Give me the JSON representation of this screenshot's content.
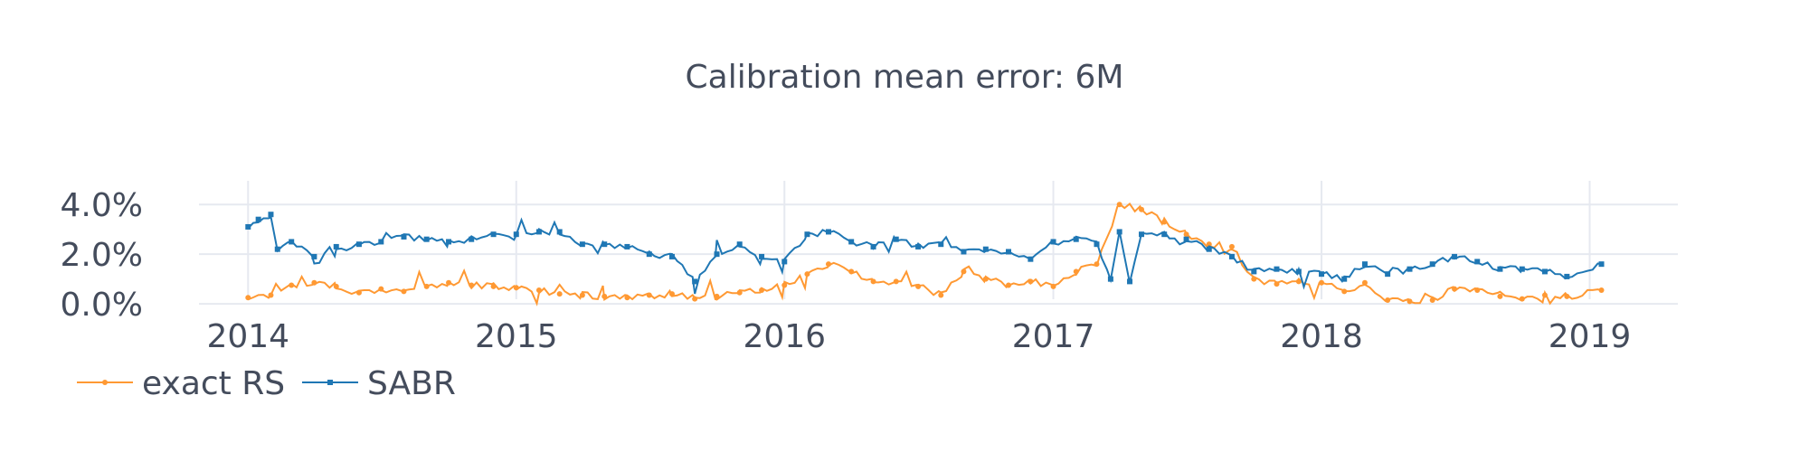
{
  "chart_data": {
    "type": "line",
    "title": "Calibration mean error: 6M",
    "xlabel": "",
    "ylabel": "",
    "x_start": "2014-01-01",
    "x_end": "2019-01-17",
    "xlim": [
      "2013-08-01",
      "2019-05-01"
    ],
    "ylim": [
      -0.25,
      5.5
    ],
    "x_ticks": [
      "2014",
      "2015",
      "2016",
      "2017",
      "2018",
      "2019"
    ],
    "y_ticks": [
      "0.0%",
      "2.0%",
      "4.0%"
    ],
    "grid": true,
    "legend_position": "bottom-left",
    "series": [
      {
        "name": "exact RS",
        "color": "#ff9933",
        "knots": [
          [
            "2014-01-01",
            0.25
          ],
          [
            "2014-02-01",
            0.35
          ],
          [
            "2014-03-01",
            0.75
          ],
          [
            "2014-04-01",
            0.85
          ],
          [
            "2014-05-01",
            0.7
          ],
          [
            "2014-06-01",
            0.45
          ],
          [
            "2014-07-01",
            0.6
          ],
          [
            "2014-08-01",
            0.5
          ],
          [
            "2014-09-01",
            0.7
          ],
          [
            "2014-10-01",
            0.85
          ],
          [
            "2014-11-01",
            0.75
          ],
          [
            "2014-12-01",
            0.7
          ],
          [
            "2015-01-01",
            0.65
          ],
          [
            "2015-02-01",
            0.55
          ],
          [
            "2015-03-01",
            0.4
          ],
          [
            "2015-04-01",
            0.35
          ],
          [
            "2015-05-01",
            0.3
          ],
          [
            "2015-06-01",
            0.25
          ],
          [
            "2015-07-01",
            0.35
          ],
          [
            "2015-08-01",
            0.4
          ],
          [
            "2015-09-01",
            0.2
          ],
          [
            "2015-10-01",
            0.3
          ],
          [
            "2015-11-01",
            0.45
          ],
          [
            "2015-12-01",
            0.55
          ],
          [
            "2016-01-01",
            0.75
          ],
          [
            "2016-02-01",
            1.2
          ],
          [
            "2016-03-01",
            1.6
          ],
          [
            "2016-04-01",
            1.3
          ],
          [
            "2016-05-01",
            0.9
          ],
          [
            "2016-06-01",
            0.9
          ],
          [
            "2016-07-01",
            0.7
          ],
          [
            "2016-08-01",
            0.35
          ],
          [
            "2016-09-01",
            1.3
          ],
          [
            "2016-10-01",
            1.0
          ],
          [
            "2016-11-01",
            0.75
          ],
          [
            "2016-12-01",
            0.9
          ],
          [
            "2017-01-01",
            0.7
          ],
          [
            "2017-02-01",
            1.3
          ],
          [
            "2017-03-01",
            1.6
          ],
          [
            "2017-04-01",
            4.0
          ],
          [
            "2017-05-01",
            3.8
          ],
          [
            "2017-06-01",
            3.3
          ],
          [
            "2017-07-01",
            2.8
          ],
          [
            "2017-08-01",
            2.4
          ],
          [
            "2017-09-01",
            2.3
          ],
          [
            "2017-10-01",
            1.0
          ],
          [
            "2017-11-01",
            0.8
          ],
          [
            "2017-12-01",
            0.9
          ],
          [
            "2018-01-01",
            0.85
          ],
          [
            "2018-02-01",
            0.5
          ],
          [
            "2018-03-01",
            0.85
          ],
          [
            "2018-04-01",
            0.15
          ],
          [
            "2018-05-01",
            0.1
          ],
          [
            "2018-06-01",
            0.15
          ],
          [
            "2018-07-01",
            0.6
          ],
          [
            "2018-08-01",
            0.55
          ],
          [
            "2018-09-01",
            0.3
          ],
          [
            "2018-10-01",
            0.2
          ],
          [
            "2018-11-01",
            0.35
          ],
          [
            "2018-12-01",
            0.3
          ],
          [
            "2019-01-17",
            0.55
          ]
        ]
      },
      {
        "name": "SABR",
        "color": "#1f77b4",
        "knots": [
          [
            "2014-01-01",
            3.1
          ],
          [
            "2014-01-15",
            3.4
          ],
          [
            "2014-02-01",
            3.6
          ],
          [
            "2014-02-10",
            2.2
          ],
          [
            "2014-03-01",
            2.5
          ],
          [
            "2014-04-01",
            1.9
          ],
          [
            "2014-05-01",
            2.3
          ],
          [
            "2014-06-01",
            2.4
          ],
          [
            "2014-07-01",
            2.5
          ],
          [
            "2014-08-01",
            2.7
          ],
          [
            "2014-09-01",
            2.6
          ],
          [
            "2014-10-01",
            2.5
          ],
          [
            "2014-11-01",
            2.6
          ],
          [
            "2014-12-01",
            2.8
          ],
          [
            "2015-01-01",
            2.8
          ],
          [
            "2015-02-01",
            2.9
          ],
          [
            "2015-03-01",
            2.9
          ],
          [
            "2015-04-01",
            2.4
          ],
          [
            "2015-05-01",
            2.4
          ],
          [
            "2015-06-01",
            2.3
          ],
          [
            "2015-07-01",
            2.0
          ],
          [
            "2015-08-01",
            1.9
          ],
          [
            "2015-09-01",
            0.9
          ],
          [
            "2015-10-01",
            2.0
          ],
          [
            "2015-11-01",
            2.4
          ],
          [
            "2015-12-01",
            1.9
          ],
          [
            "2016-01-01",
            1.7
          ],
          [
            "2016-02-01",
            2.8
          ],
          [
            "2016-03-01",
            2.9
          ],
          [
            "2016-04-01",
            2.5
          ],
          [
            "2016-05-01",
            2.3
          ],
          [
            "2016-06-01",
            2.6
          ],
          [
            "2016-07-01",
            2.3
          ],
          [
            "2016-08-01",
            2.4
          ],
          [
            "2016-09-01",
            2.1
          ],
          [
            "2016-10-01",
            2.2
          ],
          [
            "2016-11-01",
            2.1
          ],
          [
            "2016-12-01",
            1.8
          ],
          [
            "2017-01-01",
            2.5
          ],
          [
            "2017-02-01",
            2.6
          ],
          [
            "2017-03-01",
            2.4
          ],
          [
            "2017-03-20",
            1.0
          ],
          [
            "2017-04-01",
            2.9
          ],
          [
            "2017-04-15",
            0.9
          ],
          [
            "2017-05-01",
            2.8
          ],
          [
            "2017-06-01",
            2.8
          ],
          [
            "2017-07-01",
            2.6
          ],
          [
            "2017-08-01",
            2.2
          ],
          [
            "2017-09-01",
            1.9
          ],
          [
            "2017-10-01",
            1.3
          ],
          [
            "2017-11-01",
            1.4
          ],
          [
            "2017-12-01",
            1.3
          ],
          [
            "2018-01-01",
            1.2
          ],
          [
            "2018-02-01",
            1.0
          ],
          [
            "2018-03-01",
            1.6
          ],
          [
            "2018-04-01",
            1.2
          ],
          [
            "2018-05-01",
            1.4
          ],
          [
            "2018-06-01",
            1.6
          ],
          [
            "2018-07-01",
            1.9
          ],
          [
            "2018-08-01",
            1.7
          ],
          [
            "2018-09-01",
            1.4
          ],
          [
            "2018-10-01",
            1.4
          ],
          [
            "2018-11-01",
            1.3
          ],
          [
            "2018-12-01",
            1.1
          ],
          [
            "2019-01-17",
            1.6
          ]
        ]
      }
    ]
  }
}
